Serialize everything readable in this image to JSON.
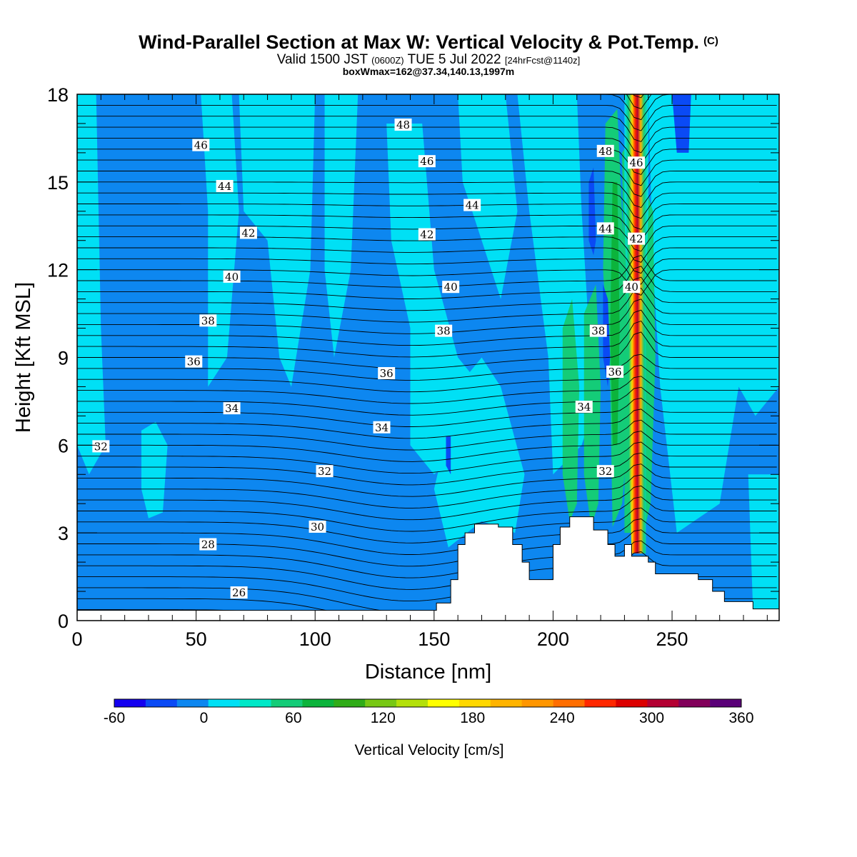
{
  "header": {
    "title": "Wind-Parallel Section at Max W: Vertical Velocity & Pot.Temp.",
    "copyright": "(C)",
    "valid_prefix": "Valid 1500 JST",
    "valid_utc": "(0600Z)",
    "valid_date": "TUE 5 Jul 2022",
    "forecast": "[24hrFcst@1140z]",
    "box_info": "boxWmax=162@37.34,140.13,1997m"
  },
  "chart_data": {
    "type": "heatmap",
    "xlabel": "Distance [nm]",
    "ylabel": "Height [Kft MSL]",
    "xlim": [
      0,
      295
    ],
    "ylim": [
      0,
      18
    ],
    "x_ticks": [
      0,
      50,
      100,
      150,
      200,
      250
    ],
    "y_ticks": [
      0,
      3,
      6,
      9,
      12,
      15,
      18
    ],
    "colorbar": {
      "label": "Vertical Velocity [cm/s]",
      "ticks": [
        -60,
        0,
        60,
        120,
        180,
        240,
        300,
        360
      ],
      "colors": [
        "#1400f0",
        "#0a4af5",
        "#0d87f0",
        "#00e0f5",
        "#00e8c8",
        "#14cc78",
        "#0cb43c",
        "#30ac18",
        "#78c814",
        "#b4e00a",
        "#ffff00",
        "#ffd800",
        "#ffb400",
        "#ff9600",
        "#ff6e00",
        "#ff2800",
        "#dc0000",
        "#b40032",
        "#82005a",
        "#5a0078"
      ]
    },
    "isentropes": [
      {
        "value": 26,
        "x": 68,
        "y": 0.95
      },
      {
        "value": 28,
        "x": 55,
        "y": 2.6
      },
      {
        "value": 30,
        "x": 101,
        "y": 3.2
      },
      {
        "value": 32,
        "x": 10,
        "y": 5.95
      },
      {
        "value": 32,
        "x": 104,
        "y": 5.1
      },
      {
        "value": 32,
        "x": 222,
        "y": 5.1
      },
      {
        "value": 34,
        "x": 65,
        "y": 7.25
      },
      {
        "value": 34,
        "x": 128,
        "y": 6.6
      },
      {
        "value": 34,
        "x": 213,
        "y": 7.3
      },
      {
        "value": 36,
        "x": 49,
        "y": 8.85
      },
      {
        "value": 36,
        "x": 130,
        "y": 8.45
      },
      {
        "value": 36,
        "x": 226,
        "y": 8.5
      },
      {
        "value": 38,
        "x": 55,
        "y": 10.25
      },
      {
        "value": 38,
        "x": 154,
        "y": 9.9
      },
      {
        "value": 38,
        "x": 219,
        "y": 9.9
      },
      {
        "value": 40,
        "x": 65,
        "y": 11.75
      },
      {
        "value": 40,
        "x": 157,
        "y": 11.4
      },
      {
        "value": 40,
        "x": 233,
        "y": 11.4
      },
      {
        "value": 42,
        "x": 72,
        "y": 13.25
      },
      {
        "value": 42,
        "x": 147,
        "y": 13.2
      },
      {
        "value": 42,
        "x": 235,
        "y": 13.05
      },
      {
        "value": 44,
        "x": 62,
        "y": 14.85
      },
      {
        "value": 44,
        "x": 166,
        "y": 14.2
      },
      {
        "value": 44,
        "x": 222,
        "y": 13.4
      },
      {
        "value": 46,
        "x": 52,
        "y": 16.25
      },
      {
        "value": 46,
        "x": 147,
        "y": 15.7
      },
      {
        "value": 46,
        "x": 235,
        "y": 15.65
      },
      {
        "value": 48,
        "x": 137,
        "y": 16.95
      },
      {
        "value": 48,
        "x": 222,
        "y": 16.05
      }
    ],
    "terrain": [
      [
        0,
        0.35
      ],
      [
        151,
        0.35
      ],
      [
        151,
        0.6
      ],
      [
        157,
        0.6
      ],
      [
        157,
        1.4
      ],
      [
        160,
        1.4
      ],
      [
        160,
        2.6
      ],
      [
        163,
        2.6
      ],
      [
        163,
        3.0
      ],
      [
        167,
        3.0
      ],
      [
        167,
        3.3
      ],
      [
        177,
        3.3
      ],
      [
        177,
        3.2
      ],
      [
        183,
        3.2
      ],
      [
        183,
        2.6
      ],
      [
        187,
        2.6
      ],
      [
        187,
        2.0
      ],
      [
        190,
        2.0
      ],
      [
        190,
        1.4
      ],
      [
        200,
        1.4
      ],
      [
        200,
        2.6
      ],
      [
        203,
        2.6
      ],
      [
        203,
        3.2
      ],
      [
        207,
        3.2
      ],
      [
        207,
        3.55
      ],
      [
        217,
        3.55
      ],
      [
        217,
        3.1
      ],
      [
        223,
        3.1
      ],
      [
        223,
        2.6
      ],
      [
        226,
        2.6
      ],
      [
        226,
        2.2
      ],
      [
        230,
        2.2
      ],
      [
        230,
        2.6
      ],
      [
        233,
        2.6
      ],
      [
        233,
        2.2
      ],
      [
        240,
        2.2
      ],
      [
        240,
        2.0
      ],
      [
        243,
        2.0
      ],
      [
        243,
        1.6
      ],
      [
        250,
        1.6
      ],
      [
        250,
        1.6
      ],
      [
        261,
        1.6
      ],
      [
        261,
        1.4
      ],
      [
        267,
        1.4
      ],
      [
        267,
        1.0
      ],
      [
        272,
        1.0
      ],
      [
        272,
        0.65
      ],
      [
        284,
        0.65
      ],
      [
        284,
        0.4
      ],
      [
        295,
        0.4
      ]
    ]
  }
}
